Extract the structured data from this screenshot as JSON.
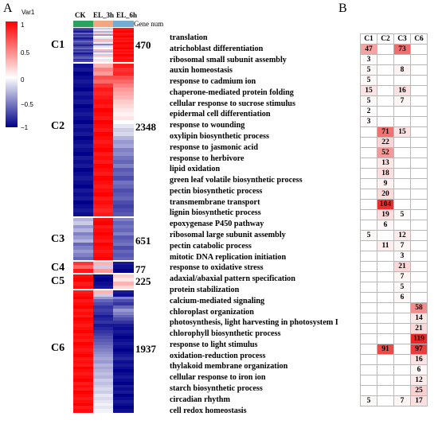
{
  "panel_a": {
    "letter": "A",
    "legend": {
      "title": "Var1",
      "ticks": [
        "1",
        "0.5",
        "0",
        "−0.5",
        "−1"
      ]
    },
    "samples": [
      {
        "label": "CK",
        "color": "#2ca25f"
      },
      {
        "label": "EL_3h",
        "color": "#f4a582"
      },
      {
        "label": "EL_6h",
        "color": "#74add1"
      }
    ],
    "gene_num_header": "Gene num",
    "clusters": [
      {
        "name": "C1",
        "gene_num": "470",
        "rows": 22,
        "profile": [
          [
            -0.7,
            -0.8,
            -0.9,
            -0.6,
            -0.8,
            -0.7,
            -0.9,
            -0.8,
            -0.6,
            -0.7,
            -0.8,
            -0.9,
            -0.7,
            -0.6,
            -0.8,
            -0.7,
            -0.9,
            -0.8,
            -0.7,
            -0.6,
            -0.8,
            -0.7
          ],
          [
            -0.2,
            0.1,
            -0.3,
            0.2,
            -0.4,
            0.0,
            -0.1,
            0.3,
            -0.2,
            0.1,
            -0.5,
            0.2,
            -0.1,
            0.0,
            0.3,
            -0.3,
            0.1,
            -0.2,
            0.2,
            0.0,
            -0.1,
            0.1
          ],
          [
            0.9,
            0.95,
            1.0,
            0.9,
            0.95,
            1.0,
            0.9,
            0.95,
            0.9,
            1.0,
            0.95,
            0.9,
            0.95,
            1.0,
            0.9,
            0.95,
            0.9,
            1.0,
            0.95,
            0.9,
            0.95,
            0.9
          ]
        ]
      },
      {
        "name": "C2",
        "gene_num": "2348",
        "rows": 38,
        "profile": [
          [
            -0.95,
            -0.9,
            -1.0,
            -0.95,
            -0.9,
            -0.95,
            -1.0,
            -0.9,
            -0.95,
            -0.9,
            -1.0,
            -0.95,
            -0.9,
            -0.95,
            -1.0,
            -0.9,
            -0.95,
            -0.9,
            -1.0,
            -0.95,
            -0.9,
            -0.95,
            -1.0,
            -0.9,
            -0.95,
            -0.9,
            -1.0,
            -0.95,
            -0.9,
            -0.95,
            -1.0,
            -0.9,
            -0.95,
            -0.9,
            -1.0,
            -0.95,
            -0.9,
            -0.95
          ],
          [
            0.3,
            0.5,
            0.4,
            0.7,
            0.6,
            0.8,
            0.9,
            0.85,
            0.9,
            0.95,
            0.9,
            1.0,
            0.95,
            0.9,
            1.0,
            0.95,
            0.9,
            1.0,
            0.95,
            0.9,
            0.95,
            1.0,
            0.9,
            0.95,
            0.9,
            1.0,
            0.95,
            0.9,
            1.0,
            0.95,
            0.9,
            0.95,
            1.0,
            0.9,
            0.95,
            0.9,
            0.85,
            0.9
          ],
          [
            0.9,
            0.8,
            0.85,
            0.7,
            0.6,
            0.5,
            0.4,
            0.35,
            0.3,
            0.2,
            0.15,
            0.1,
            0.05,
            0.1,
            0.0,
            -0.1,
            -0.2,
            -0.15,
            -0.3,
            -0.4,
            -0.35,
            -0.5,
            -0.45,
            -0.55,
            -0.6,
            -0.5,
            -0.65,
            -0.6,
            -0.7,
            -0.55,
            -0.6,
            -0.7,
            -0.65,
            -0.6,
            -0.7,
            -0.75,
            -0.7,
            -0.65
          ]
        ]
      },
      {
        "name": "C3",
        "gene_num": "651",
        "rows": 12,
        "profile": [
          [
            -0.3,
            -0.2,
            -0.4,
            -0.3,
            -0.5,
            -0.4,
            -0.3,
            -0.6,
            -0.5,
            -0.4,
            -0.5,
            -0.6
          ],
          [
            0.95,
            1.0,
            0.9,
            0.95,
            1.0,
            0.95,
            0.9,
            1.0,
            0.95,
            0.9,
            0.95,
            1.0
          ],
          [
            -0.5,
            -0.6,
            -0.55,
            -0.6,
            -0.5,
            -0.65,
            -0.6,
            -0.55,
            -0.7,
            -0.6,
            -0.65,
            -0.6
          ]
        ]
      },
      {
        "name": "C4",
        "gene_num": "77",
        "rows": 3,
        "profile": [
          [
            0.8,
            0.6,
            0.9
          ],
          [
            0.3,
            -0.2,
            0.4
          ],
          [
            -0.9,
            -0.95,
            -1.0
          ]
        ]
      },
      {
        "name": "C5",
        "gene_num": "225",
        "rows": 4,
        "profile": [
          [
            0.95,
            1.0,
            0.9,
            0.95
          ],
          [
            -0.95,
            -1.0,
            -0.95,
            -0.9
          ],
          [
            0.2,
            0.1,
            0.3,
            0.15
          ]
        ]
      },
      {
        "name": "C6",
        "gene_num": "1937",
        "rows": 40,
        "profile": [
          [
            0.9,
            0.95,
            1.0,
            0.9,
            0.95,
            1.0,
            0.9,
            0.95,
            0.9,
            1.0,
            0.95,
            0.9,
            0.95,
            1.0,
            0.9,
            0.95,
            0.9,
            1.0,
            0.95,
            0.9,
            0.95,
            1.0,
            0.9,
            0.95,
            0.9,
            1.0,
            0.95,
            0.9,
            0.95,
            1.0,
            0.9,
            0.95,
            0.9,
            1.0,
            0.95,
            0.9,
            0.95,
            1.0,
            0.9,
            0.95
          ],
          [
            0.3,
            -0.2,
            -0.4,
            -0.6,
            -0.7,
            -0.8,
            -0.75,
            -0.8,
            -0.9,
            -0.85,
            -0.8,
            -0.9,
            -0.85,
            -0.8,
            -0.75,
            -0.7,
            -0.65,
            -0.6,
            -0.55,
            -0.5,
            -0.45,
            -0.4,
            -0.35,
            -0.4,
            -0.3,
            -0.35,
            -0.3,
            -0.25,
            -0.3,
            -0.2,
            -0.25,
            -0.2,
            -0.15,
            -0.2,
            -0.1,
            -0.15,
            -0.1,
            -0.05,
            -0.1,
            -0.05
          ],
          [
            -0.9,
            -0.95,
            -0.5,
            -0.7,
            -0.8,
            -0.6,
            -0.4,
            -0.5,
            -0.6,
            -0.7,
            -0.8,
            -0.9,
            -0.95,
            -0.9,
            -0.95,
            -1.0,
            -0.95,
            -0.9,
            -0.95,
            -1.0,
            -0.95,
            -0.9,
            -0.85,
            -0.95,
            -0.9,
            -0.95,
            -1.0,
            -0.95,
            -0.9,
            -0.95,
            -1.0,
            -0.9,
            -0.95,
            -0.9,
            -1.0,
            -0.95,
            -0.9,
            -0.95,
            -1.0,
            -0.95
          ]
        ]
      }
    ]
  },
  "terms": [
    "translation",
    "atrichoblast differentiation",
    "ribosomal small subunit assembly",
    "auxin homeostasis",
    "response to cadmium ion",
    "chaperone-mediated protein folding",
    "cellular response to sucrose stimulus",
    "epidermal cell differentiation",
    "response to wounding",
    "oxylipin biosynthetic process",
    "response to jasmonic acid",
    "response to herbivore",
    "lipid oxidation",
    "green leaf volatile biosynthetic process",
    "pectin biosynthetic process",
    "transmembrane transport",
    "lignin biosynthetic process",
    "epoxygenase P450 pathway",
    "ribosomal large subunit assembly",
    "pectin catabolic process",
    "mitotic DNA replication initiation",
    "response to oxidative stress",
    "adaxial/abaxial pattern specification",
    "protein stabilization",
    "calcium-mediated signaling",
    "chloroplast organization",
    "photosynthesis, light harvesting in photosystem I",
    "chlorophyll biosynthetic process",
    "response to light stimulus",
    "oxidation-reduction process",
    "thylakoid membrane organization",
    "cellular response to iron ion",
    "starch biosynthetic process",
    "circadian rhythm",
    "cell redox homeostasis"
  ],
  "panel_b": {
    "letter": "B",
    "headers": [
      "C1",
      "C2",
      "C3",
      "C6"
    ],
    "rows": [
      [
        "47",
        "",
        "73",
        ""
      ],
      [
        "3",
        "",
        "",
        ""
      ],
      [
        "5",
        "",
        "8",
        ""
      ],
      [
        "5",
        "",
        "",
        ""
      ],
      [
        "15",
        "",
        "16",
        ""
      ],
      [
        "5",
        "",
        "7",
        ""
      ],
      [
        "2",
        "",
        "",
        ""
      ],
      [
        "3",
        "",
        "",
        ""
      ],
      [
        "",
        "71",
        "15",
        ""
      ],
      [
        "",
        "22",
        "",
        ""
      ],
      [
        "",
        "52",
        "",
        ""
      ],
      [
        "",
        "13",
        "",
        ""
      ],
      [
        "",
        "18",
        "",
        ""
      ],
      [
        "",
        "9",
        "",
        ""
      ],
      [
        "",
        "20",
        "",
        ""
      ],
      [
        "",
        "104",
        "",
        ""
      ],
      [
        "",
        "19",
        "5",
        ""
      ],
      [
        "",
        "6",
        "",
        ""
      ],
      [
        "5",
        "",
        "12",
        ""
      ],
      [
        "",
        "11",
        "7",
        ""
      ],
      [
        "",
        "",
        "3",
        ""
      ],
      [
        "",
        "",
        "21",
        ""
      ],
      [
        "",
        "",
        "7",
        ""
      ],
      [
        "",
        "",
        "5",
        ""
      ],
      [
        "",
        "",
        "6",
        ""
      ],
      [
        "",
        "",
        "",
        "58"
      ],
      [
        "",
        "",
        "",
        "14"
      ],
      [
        "",
        "",
        "",
        "21"
      ],
      [
        "",
        "",
        "",
        "119"
      ],
      [
        "",
        "91",
        "",
        "97"
      ],
      [
        "",
        "",
        "",
        "16"
      ],
      [
        "",
        "",
        "",
        "6"
      ],
      [
        "",
        "",
        "",
        "12"
      ],
      [
        "",
        "",
        "",
        "25"
      ],
      [
        "5",
        "",
        "7",
        "17"
      ]
    ]
  }
}
